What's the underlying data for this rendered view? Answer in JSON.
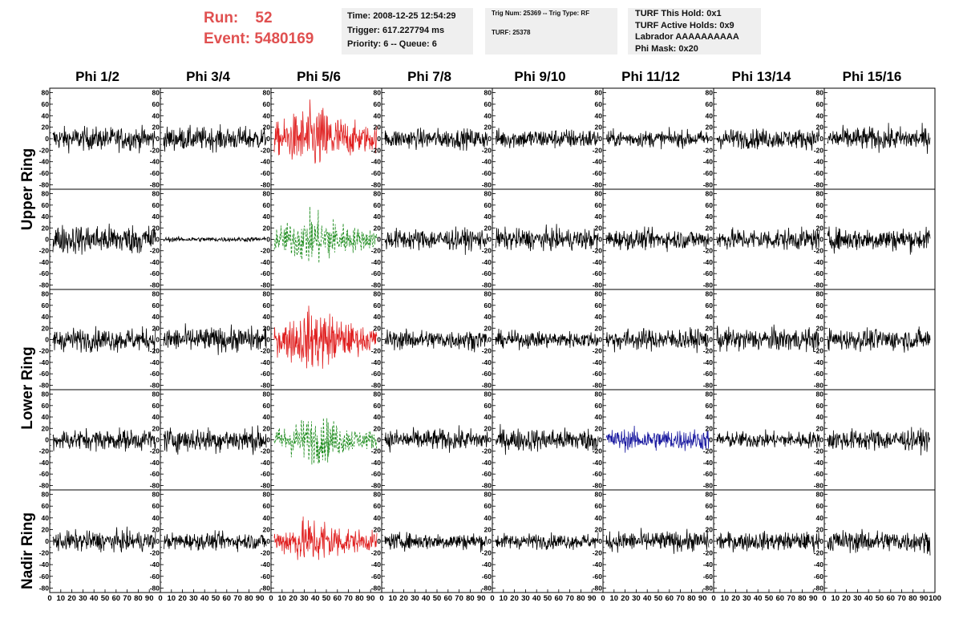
{
  "header": {
    "run_label": "Run:",
    "run_value": "52",
    "event_label": "Event:",
    "event_value": "5480169",
    "time": "Time: 2008-12-25 12:54:29",
    "trigger": "Trigger: 617.227794 ms",
    "priority": "Priority: 6 -- Queue: 6",
    "trig_num": "Trig Num: 25369 -- Trig Type: RF",
    "turf": "TURF: 25378",
    "turf_hold": "TURF This Hold: 0x1",
    "turf_active": "TURF Active Holds: 0x9",
    "labrador": "Labrador AAAAAAAAAA",
    "phi_mask": "Phi Mask: 0x20",
    "run_color": "#e05050"
  },
  "columns": [
    "Phi 1/2",
    "Phi 3/4",
    "Phi 5/6",
    "Phi 7/8",
    "Phi 9/10",
    "Phi 11/12",
    "Phi 13/14",
    "Phi 15/16"
  ],
  "rings": [
    "Upper Ring",
    "Lower Ring",
    "Nadir Ring"
  ],
  "chart_data": {
    "type": "line",
    "x_ticks": [
      "0",
      "10",
      "20",
      "30",
      "40",
      "50",
      "60",
      "70",
      "80",
      "90",
      "100"
    ],
    "xlim": [
      0,
      100
    ],
    "y_ticks": [
      "80",
      "60",
      "40",
      "20",
      "0",
      "-20",
      "-40",
      "-60",
      "-80"
    ],
    "ylim": [
      -85,
      85
    ],
    "samples": 260,
    "colors": {
      "black": "#000000",
      "red": "#e02020",
      "green": "#1a8a1a",
      "blue": "#1a1aa0"
    },
    "panels": [
      [
        {
          "amp": 14,
          "color": "black"
        },
        {
          "amp": 14,
          "color": "black"
        },
        {
          "amp": 28,
          "color": "red"
        },
        {
          "amp": 12,
          "color": "black"
        },
        {
          "amp": 12,
          "color": "black"
        },
        {
          "amp": 10,
          "color": "black"
        },
        {
          "amp": 12,
          "color": "black"
        },
        {
          "amp": 14,
          "color": "black"
        }
      ],
      [
        {
          "amp": 18,
          "color": "black"
        },
        {
          "amp": 3,
          "color": "black"
        },
        {
          "amp": 22,
          "color": "green",
          "dashed": true
        },
        {
          "amp": 13,
          "color": "black"
        },
        {
          "amp": 13,
          "color": "black"
        },
        {
          "amp": 12,
          "color": "black"
        },
        {
          "amp": 13,
          "color": "black"
        },
        {
          "amp": 14,
          "color": "black"
        }
      ],
      [
        {
          "amp": 14,
          "color": "black"
        },
        {
          "amp": 15,
          "color": "black"
        },
        {
          "amp": 26,
          "color": "red"
        },
        {
          "amp": 12,
          "color": "black"
        },
        {
          "amp": 10,
          "color": "black"
        },
        {
          "amp": 13,
          "color": "black"
        },
        {
          "amp": 14,
          "color": "black"
        },
        {
          "amp": 13,
          "color": "black"
        }
      ],
      [
        {
          "amp": 13,
          "color": "black"
        },
        {
          "amp": 15,
          "color": "black"
        },
        {
          "amp": 20,
          "color": "green",
          "dashed": true
        },
        {
          "amp": 13,
          "color": "black"
        },
        {
          "amp": 14,
          "color": "black"
        },
        {
          "amp": 13,
          "color": "blue"
        },
        {
          "amp": 10,
          "color": "black"
        },
        {
          "amp": 13,
          "color": "black"
        }
      ],
      [
        {
          "amp": 12,
          "color": "black"
        },
        {
          "amp": 10,
          "color": "black"
        },
        {
          "amp": 20,
          "color": "red"
        },
        {
          "amp": 10,
          "color": "black"
        },
        {
          "amp": 9,
          "color": "black"
        },
        {
          "amp": 12,
          "color": "black"
        },
        {
          "amp": 11,
          "color": "black"
        },
        {
          "amp": 13,
          "color": "black"
        }
      ]
    ]
  }
}
